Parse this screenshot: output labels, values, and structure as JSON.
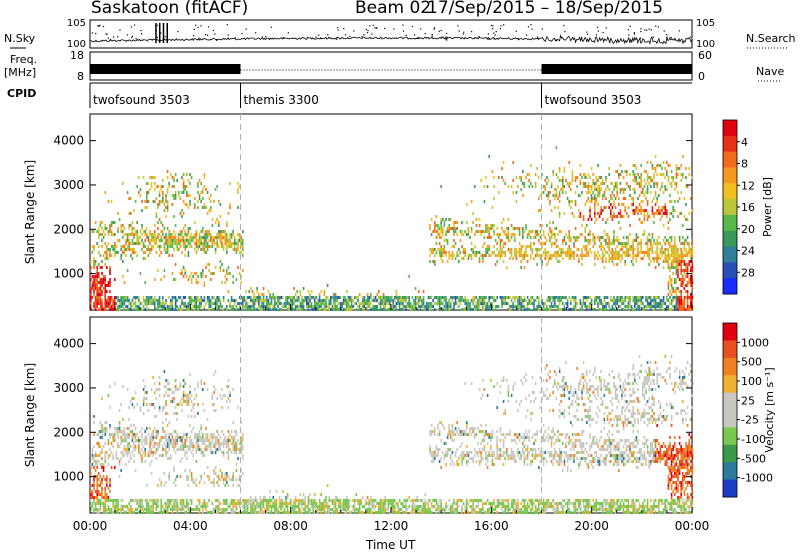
{
  "header": {
    "title": "Saskatoon (fitACF)",
    "beam_label": "Beam 02",
    "date_range": "17/Sep/2015 – 18/Sep/2015"
  },
  "left_labels": {
    "nsky": "N.Sky",
    "freq": "Freq.",
    "freq_unit": "[MHz]",
    "cpid": "CPID"
  },
  "right_labels": {
    "nsearch": "N.Search",
    "nave": "Nave"
  },
  "noise_axis": {
    "left_ticks": [
      "10^5",
      "10^0"
    ],
    "right_ticks": [
      "10^5",
      "10^0"
    ]
  },
  "freq_axis": {
    "left_ticks": [
      "18",
      "8"
    ],
    "right_ticks": [
      "60",
      "0"
    ]
  },
  "cpid_segments": [
    {
      "label": "twofsound 3503",
      "start_hour": 0,
      "end_hour": 6
    },
    {
      "label": "themis 3300",
      "start_hour": 6,
      "end_hour": 18
    },
    {
      "label": "twofsound 3503",
      "start_hour": 18,
      "end_hour": 24
    }
  ],
  "chart_data": [
    {
      "type": "heatmap",
      "name": "power",
      "ylabel": "Slant Range [km]",
      "ylim": [
        180,
        4600
      ],
      "yticks": [
        "1000",
        "2000",
        "3000",
        "4000"
      ],
      "xlim": [
        0,
        24
      ],
      "colorbar": {
        "label": "Power [dB]",
        "ticks": [
          "4",
          "8",
          "12",
          "16",
          "20",
          "24",
          "28"
        ],
        "colors": [
          "#1a2cff",
          "#2b4fb8",
          "#2f7f9a",
          "#3a9a5a",
          "#58b84a",
          "#b8c838",
          "#f0c020",
          "#f59a20",
          "#f26a1b",
          "#e83018",
          "#e00010"
        ]
      }
    },
    {
      "type": "heatmap",
      "name": "velocity",
      "ylabel": "Slant Range [km]",
      "ylim": [
        180,
        4600
      ],
      "yticks": [
        "1000",
        "2000",
        "3000",
        "4000"
      ],
      "xlim": [
        0,
        24
      ],
      "colorbar": {
        "label": "Velocity [m s⁻¹]",
        "ticks": [
          "1000",
          "500",
          "100",
          "25",
          "-25",
          "-100",
          "-500",
          "-1000"
        ],
        "colors": [
          "#1c3cc8",
          "#2a7a9a",
          "#3a9a4a",
          "#78c850",
          "#c8c8c0",
          "#c8c8c0",
          "#f0b030",
          "#f08020",
          "#e85020",
          "#e00010"
        ]
      }
    }
  ],
  "x_axis": {
    "ticks": [
      "00:00",
      "04:00",
      "08:00",
      "12:00",
      "16:00",
      "20:00",
      "00:00"
    ],
    "label": "Time UT"
  },
  "colors": {
    "grey_scatter": "#c8c8c0",
    "mode_change_line": "#b0b0b0"
  }
}
